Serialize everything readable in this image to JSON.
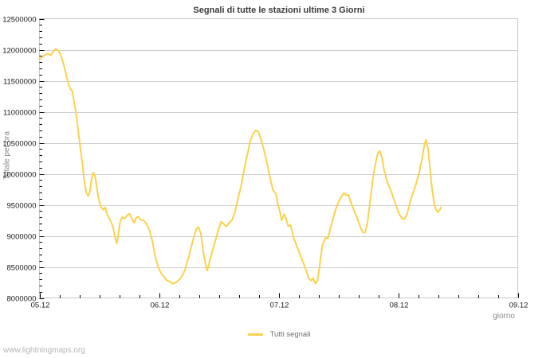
{
  "page": {
    "watermark": "www.lightningmaps.org"
  },
  "chart_data": {
    "type": "line",
    "title": "Segnali di tutte le stazioni ultime 3 Giorni",
    "xlabel": "giorno",
    "ylabel": "Totale per ora",
    "grid": "horizontal-major",
    "legend_position": "bottom-center",
    "colors": {
      "line": "#fbd24b",
      "grid": "#cccccc",
      "frame": "#c8c8c8",
      "tick": "#000000",
      "tick_label": "#1a1a1a"
    },
    "x_ticks": [
      "05.12",
      "06.12",
      "07.12",
      "08.12",
      "09.12"
    ],
    "x_minor_step_hours": 4,
    "hours_per_day": 24,
    "y_ticks": [
      "8000000",
      "8500000",
      "9000000",
      "9500000",
      "10000000",
      "10500000",
      "11000000",
      "11500000",
      "12000000",
      "12500000"
    ],
    "ylim": [
      8000000,
      12500000
    ],
    "y_tick_step": 500000,
    "y_minor_step": 100000,
    "series": [
      {
        "name": "Tutti segnali",
        "color": "#fbd24b",
        "x_unit": "hours_since_first_tick",
        "points": [
          [
            0,
            11850000
          ],
          [
            0.8,
            11900000
          ],
          [
            1.6,
            11940000
          ],
          [
            2.2,
            11910000
          ],
          [
            2.8,
            11970000
          ],
          [
            3.2,
            12010000
          ],
          [
            3.7,
            11990000
          ],
          [
            4.1,
            11950000
          ],
          [
            4.7,
            11810000
          ],
          [
            5.2,
            11650000
          ],
          [
            5.8,
            11450000
          ],
          [
            6.2,
            11370000
          ],
          [
            6.6,
            11330000
          ],
          [
            7.0,
            11130000
          ],
          [
            7.4,
            10940000
          ],
          [
            7.8,
            10680000
          ],
          [
            8.2,
            10420000
          ],
          [
            8.6,
            10170000
          ],
          [
            9.0,
            9870000
          ],
          [
            9.4,
            9700000
          ],
          [
            9.8,
            9640000
          ],
          [
            10.1,
            9710000
          ],
          [
            10.4,
            9890000
          ],
          [
            10.8,
            10020000
          ],
          [
            11.2,
            9950000
          ],
          [
            11.8,
            9620000
          ],
          [
            12.3,
            9470000
          ],
          [
            12.8,
            9420000
          ],
          [
            13.2,
            9460000
          ],
          [
            13.6,
            9350000
          ],
          [
            14.0,
            9280000
          ],
          [
            14.4,
            9220000
          ],
          [
            14.8,
            9130000
          ],
          [
            15.1,
            9000000
          ],
          [
            15.5,
            8880000
          ],
          [
            15.8,
            9010000
          ],
          [
            16.2,
            9230000
          ],
          [
            16.6,
            9300000
          ],
          [
            17.1,
            9280000
          ],
          [
            17.6,
            9330000
          ],
          [
            18.1,
            9360000
          ],
          [
            18.6,
            9260000
          ],
          [
            19.0,
            9210000
          ],
          [
            19.4,
            9290000
          ],
          [
            19.8,
            9310000
          ],
          [
            20.3,
            9260000
          ],
          [
            20.9,
            9250000
          ],
          [
            21.5,
            9190000
          ],
          [
            22.1,
            9090000
          ],
          [
            22.7,
            8900000
          ],
          [
            23.2,
            8680000
          ],
          [
            23.8,
            8500000
          ],
          [
            24.4,
            8400000
          ],
          [
            25.0,
            8340000
          ],
          [
            25.6,
            8280000
          ],
          [
            26.2,
            8260000
          ],
          [
            26.8,
            8230000
          ],
          [
            27.4,
            8250000
          ],
          [
            28.0,
            8290000
          ],
          [
            28.6,
            8350000
          ],
          [
            29.2,
            8450000
          ],
          [
            29.8,
            8620000
          ],
          [
            30.4,
            8800000
          ],
          [
            31.0,
            8990000
          ],
          [
            31.5,
            9110000
          ],
          [
            31.9,
            9140000
          ],
          [
            32.4,
            9040000
          ],
          [
            32.9,
            8740000
          ],
          [
            33.4,
            8520000
          ],
          [
            33.7,
            8440000
          ],
          [
            34.2,
            8610000
          ],
          [
            34.8,
            8780000
          ],
          [
            35.4,
            8950000
          ],
          [
            36.0,
            9120000
          ],
          [
            36.5,
            9230000
          ],
          [
            37.0,
            9190000
          ],
          [
            37.5,
            9150000
          ],
          [
            38.1,
            9210000
          ],
          [
            38.7,
            9260000
          ],
          [
            39.3,
            9400000
          ],
          [
            39.9,
            9620000
          ],
          [
            40.5,
            9810000
          ],
          [
            41.1,
            10080000
          ],
          [
            41.7,
            10300000
          ],
          [
            42.3,
            10520000
          ],
          [
            42.9,
            10650000
          ],
          [
            43.4,
            10700000
          ],
          [
            43.9,
            10680000
          ],
          [
            44.5,
            10550000
          ],
          [
            45.1,
            10370000
          ],
          [
            45.7,
            10160000
          ],
          [
            46.3,
            9930000
          ],
          [
            46.9,
            9730000
          ],
          [
            47.4,
            9690000
          ],
          [
            47.9,
            9500000
          ],
          [
            48.3,
            9380000
          ],
          [
            48.6,
            9250000
          ],
          [
            49.1,
            9350000
          ],
          [
            49.5,
            9280000
          ],
          [
            49.9,
            9160000
          ],
          [
            50.4,
            9170000
          ],
          [
            51.0,
            8970000
          ],
          [
            51.6,
            8850000
          ],
          [
            52.2,
            8720000
          ],
          [
            52.8,
            8600000
          ],
          [
            53.4,
            8470000
          ],
          [
            54.0,
            8330000
          ],
          [
            54.5,
            8280000
          ],
          [
            54.9,
            8320000
          ],
          [
            55.4,
            8230000
          ],
          [
            55.8,
            8280000
          ],
          [
            56.3,
            8560000
          ],
          [
            56.8,
            8860000
          ],
          [
            57.4,
            8970000
          ],
          [
            57.9,
            8960000
          ],
          [
            58.4,
            9120000
          ],
          [
            58.9,
            9270000
          ],
          [
            59.5,
            9440000
          ],
          [
            60.1,
            9560000
          ],
          [
            60.7,
            9650000
          ],
          [
            61.1,
            9690000
          ],
          [
            61.6,
            9650000
          ],
          [
            62.0,
            9660000
          ],
          [
            62.6,
            9520000
          ],
          [
            63.2,
            9400000
          ],
          [
            63.8,
            9280000
          ],
          [
            64.4,
            9140000
          ],
          [
            65.0,
            9050000
          ],
          [
            65.4,
            9060000
          ],
          [
            65.9,
            9250000
          ],
          [
            66.4,
            9580000
          ],
          [
            66.9,
            9900000
          ],
          [
            67.4,
            10150000
          ],
          [
            67.9,
            10330000
          ],
          [
            68.3,
            10370000
          ],
          [
            68.7,
            10280000
          ],
          [
            69.2,
            10050000
          ],
          [
            69.8,
            9870000
          ],
          [
            70.4,
            9760000
          ],
          [
            71.0,
            9620000
          ],
          [
            71.6,
            9480000
          ],
          [
            72.2,
            9350000
          ],
          [
            72.8,
            9280000
          ],
          [
            73.3,
            9270000
          ],
          [
            73.8,
            9360000
          ],
          [
            74.4,
            9550000
          ],
          [
            75.0,
            9700000
          ],
          [
            75.6,
            9840000
          ],
          [
            76.2,
            10010000
          ],
          [
            76.8,
            10250000
          ],
          [
            77.3,
            10480000
          ],
          [
            77.6,
            10550000
          ],
          [
            78.0,
            10400000
          ],
          [
            78.3,
            10150000
          ],
          [
            78.6,
            9900000
          ],
          [
            78.9,
            9700000
          ],
          [
            79.2,
            9530000
          ],
          [
            79.6,
            9420000
          ],
          [
            80.0,
            9380000
          ],
          [
            80.3,
            9410000
          ],
          [
            80.6,
            9460000
          ]
        ]
      }
    ]
  }
}
